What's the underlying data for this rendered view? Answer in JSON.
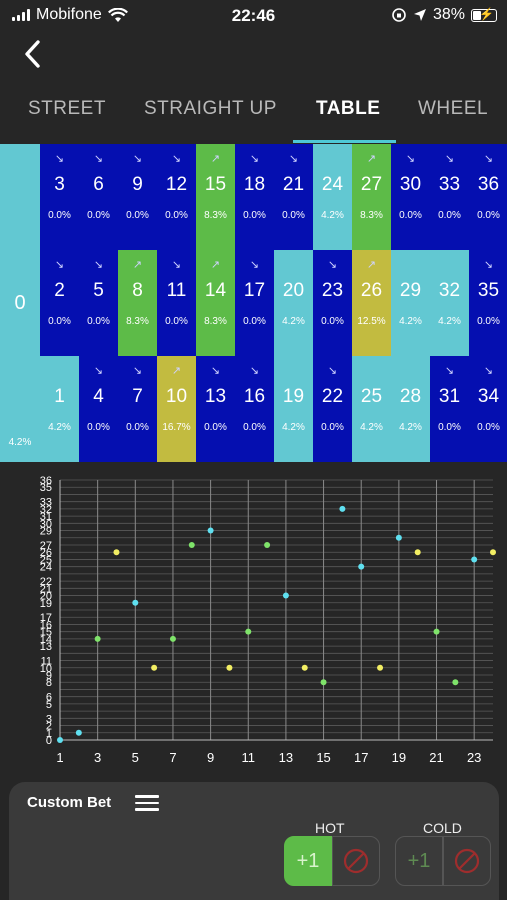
{
  "status": {
    "carrier": "Mobifone",
    "time": "22:46",
    "battery": "38%"
  },
  "tabs": [
    {
      "label": "STREET",
      "active": false
    },
    {
      "label": "STRAIGHT UP",
      "active": false
    },
    {
      "label": "TABLE",
      "active": true
    },
    {
      "label": "WHEEL",
      "active": false
    }
  ],
  "colors": {
    "blue": "#050fb0",
    "cyan": "#62c8d2",
    "green": "#5dbb48",
    "olive": "#c2bb40"
  },
  "table": {
    "zero": {
      "num": "0",
      "pct": "4.2%"
    },
    "rows": [
      [
        {
          "num": "3",
          "pct": "0.0%",
          "color": "blue",
          "trend": "down"
        },
        {
          "num": "6",
          "pct": "0.0%",
          "color": "blue",
          "trend": "down"
        },
        {
          "num": "9",
          "pct": "0.0%",
          "color": "blue",
          "trend": "down"
        },
        {
          "num": "12",
          "pct": "0.0%",
          "color": "blue",
          "trend": "down"
        },
        {
          "num": "15",
          "pct": "8.3%",
          "color": "green",
          "trend": "up"
        },
        {
          "num": "18",
          "pct": "0.0%",
          "color": "blue",
          "trend": "down"
        },
        {
          "num": "21",
          "pct": "0.0%",
          "color": "blue",
          "trend": "down"
        },
        {
          "num": "24",
          "pct": "4.2%",
          "color": "cyan",
          "trend": ""
        },
        {
          "num": "27",
          "pct": "8.3%",
          "color": "green",
          "trend": "up"
        },
        {
          "num": "30",
          "pct": "0.0%",
          "color": "blue",
          "trend": "down"
        },
        {
          "num": "33",
          "pct": "0.0%",
          "color": "blue",
          "trend": "down"
        },
        {
          "num": "36",
          "pct": "0.0%",
          "color": "blue",
          "trend": "down"
        }
      ],
      [
        {
          "num": "2",
          "pct": "0.0%",
          "color": "blue",
          "trend": "down"
        },
        {
          "num": "5",
          "pct": "0.0%",
          "color": "blue",
          "trend": "down"
        },
        {
          "num": "8",
          "pct": "8.3%",
          "color": "green",
          "trend": "up"
        },
        {
          "num": "11",
          "pct": "0.0%",
          "color": "blue",
          "trend": "down"
        },
        {
          "num": "14",
          "pct": "8.3%",
          "color": "green",
          "trend": "up"
        },
        {
          "num": "17",
          "pct": "0.0%",
          "color": "blue",
          "trend": "down"
        },
        {
          "num": "20",
          "pct": "4.2%",
          "color": "cyan",
          "trend": ""
        },
        {
          "num": "23",
          "pct": "0.0%",
          "color": "blue",
          "trend": "down"
        },
        {
          "num": "26",
          "pct": "12.5%",
          "color": "olive",
          "trend": "up"
        },
        {
          "num": "29",
          "pct": "4.2%",
          "color": "cyan",
          "trend": ""
        },
        {
          "num": "32",
          "pct": "4.2%",
          "color": "cyan",
          "trend": ""
        },
        {
          "num": "35",
          "pct": "0.0%",
          "color": "blue",
          "trend": "down"
        }
      ],
      [
        {
          "num": "1",
          "pct": "4.2%",
          "color": "cyan",
          "trend": ""
        },
        {
          "num": "4",
          "pct": "0.0%",
          "color": "blue",
          "trend": "down"
        },
        {
          "num": "7",
          "pct": "0.0%",
          "color": "blue",
          "trend": "down"
        },
        {
          "num": "10",
          "pct": "16.7%",
          "color": "olive",
          "trend": "up"
        },
        {
          "num": "13",
          "pct": "0.0%",
          "color": "blue",
          "trend": "down"
        },
        {
          "num": "16",
          "pct": "0.0%",
          "color": "blue",
          "trend": "down"
        },
        {
          "num": "19",
          "pct": "4.2%",
          "color": "cyan",
          "trend": ""
        },
        {
          "num": "22",
          "pct": "0.0%",
          "color": "blue",
          "trend": "down"
        },
        {
          "num": "25",
          "pct": "4.2%",
          "color": "cyan",
          "trend": ""
        },
        {
          "num": "28",
          "pct": "4.2%",
          "color": "cyan",
          "trend": ""
        },
        {
          "num": "31",
          "pct": "0.0%",
          "color": "blue",
          "trend": "down"
        },
        {
          "num": "34",
          "pct": "0.0%",
          "color": "blue",
          "trend": "down"
        }
      ]
    ]
  },
  "chart_data": {
    "type": "scatter",
    "x_ticks": [
      "1",
      "3",
      "5",
      "7",
      "9",
      "11",
      "13",
      "15",
      "17",
      "19",
      "21",
      "23"
    ],
    "y_ticks": [
      "0",
      "1",
      "2",
      "3",
      "5",
      "6",
      "8",
      "9",
      "10",
      "11",
      "13",
      "14",
      "15",
      "16",
      "17",
      "19",
      "20",
      "21",
      "22",
      "24",
      "25",
      "26",
      "27",
      "29",
      "30",
      "31",
      "32",
      "33",
      "35",
      "36"
    ],
    "xlim": [
      1,
      24
    ],
    "ylim": [
      0,
      36
    ],
    "points": [
      {
        "x": 1,
        "y": 0,
        "color": "cyan"
      },
      {
        "x": 2,
        "y": 1,
        "color": "cyan"
      },
      {
        "x": 3,
        "y": 14,
        "color": "green"
      },
      {
        "x": 4,
        "y": 26,
        "color": "yellow"
      },
      {
        "x": 5,
        "y": 19,
        "color": "cyan"
      },
      {
        "x": 6,
        "y": 10,
        "color": "yellow"
      },
      {
        "x": 7,
        "y": 14,
        "color": "green"
      },
      {
        "x": 8,
        "y": 27,
        "color": "green"
      },
      {
        "x": 9,
        "y": 29,
        "color": "cyan"
      },
      {
        "x": 10,
        "y": 10,
        "color": "yellow"
      },
      {
        "x": 11,
        "y": 15,
        "color": "green"
      },
      {
        "x": 12,
        "y": 27,
        "color": "green"
      },
      {
        "x": 13,
        "y": 20,
        "color": "cyan"
      },
      {
        "x": 14,
        "y": 10,
        "color": "yellow"
      },
      {
        "x": 15,
        "y": 8,
        "color": "green"
      },
      {
        "x": 16,
        "y": 32,
        "color": "cyan"
      },
      {
        "x": 17,
        "y": 24,
        "color": "cyan"
      },
      {
        "x": 18,
        "y": 10,
        "color": "yellow"
      },
      {
        "x": 19,
        "y": 28,
        "color": "cyan"
      },
      {
        "x": 20,
        "y": 26,
        "color": "yellow"
      },
      {
        "x": 21,
        "y": 15,
        "color": "green"
      },
      {
        "x": 22,
        "y": 8,
        "color": "green"
      },
      {
        "x": 23,
        "y": 25,
        "color": "cyan"
      },
      {
        "x": 24,
        "y": 26,
        "color": "yellow"
      }
    ],
    "point_colors": {
      "cyan": "#5fe0f0",
      "green": "#7fe36a",
      "yellow": "#f2ee63"
    },
    "grid": true
  },
  "custom_bet": {
    "title": "Custom Bet",
    "hot_label": "HOT",
    "cold_label": "COLD",
    "plus_label": "+1"
  }
}
